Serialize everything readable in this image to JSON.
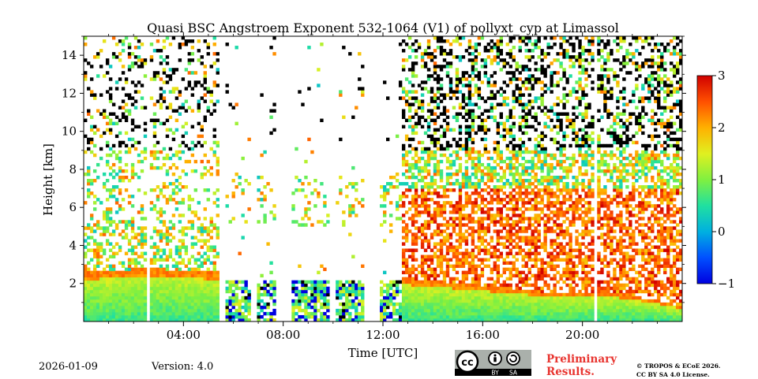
{
  "chart_data": {
    "type": "heatmap",
    "title": "Quasi BSC Angstroem Exponent 532-1064 (V1) of pollyxt_cyp at Limassol",
    "xlabel": "Time [UTC]",
    "ylabel": "Height [km]",
    "xlim_hours": [
      0,
      24
    ],
    "ylim_km": [
      0,
      15
    ],
    "x_ticks": [
      {
        "hour": 4,
        "label": "04:00"
      },
      {
        "hour": 8,
        "label": "08:00"
      },
      {
        "hour": 12,
        "label": "12:00"
      },
      {
        "hour": 16,
        "label": "16:00"
      },
      {
        "hour": 20,
        "label": "20:00"
      }
    ],
    "y_ticks": [
      {
        "value": 2,
        "label": "2"
      },
      {
        "value": 4,
        "label": "4"
      },
      {
        "value": 6,
        "label": "6"
      },
      {
        "value": 8,
        "label": "8"
      },
      {
        "value": 10,
        "label": "10"
      },
      {
        "value": 12,
        "label": "12"
      },
      {
        "value": 14,
        "label": "14"
      }
    ],
    "colorbar": {
      "min": -1,
      "max": 3,
      "colormap": "jet",
      "ticks": [
        {
          "value": 3,
          "label": "3"
        },
        {
          "value": 2,
          "label": "2"
        },
        {
          "value": 1,
          "label": "1"
        },
        {
          "value": 0,
          "label": "0"
        },
        {
          "value": -1,
          "label": "−1"
        }
      ]
    },
    "missing_data_gaps_hours": [
      [
        2.5,
        2.6
      ],
      [
        5.45,
        5.65
      ],
      [
        6.65,
        7.0
      ],
      [
        7.7,
        8.3
      ],
      [
        9.9,
        10.05
      ],
      [
        11.25,
        11.85
      ],
      [
        20.5,
        20.65
      ]
    ],
    "cloud_periods_hours": [
      [
        5.6,
        6.7
      ],
      [
        7.0,
        8.7
      ],
      [
        8.7,
        9.9
      ],
      [
        10.1,
        11.3
      ],
      [
        11.8,
        12.8
      ]
    ],
    "boundary_layer_top_km": [
      {
        "hour": 0,
        "km": 2.6
      },
      {
        "hour": 2.5,
        "km": 2.8
      },
      {
        "hour": 4,
        "km": 2.7
      },
      {
        "hour": 5.4,
        "km": 2.6
      },
      {
        "hour": 12.8,
        "km": 2.3
      },
      {
        "hour": 16,
        "km": 1.9
      },
      {
        "hour": 19,
        "km": 1.5
      },
      {
        "hour": 21,
        "km": 1.6
      },
      {
        "hour": 23,
        "km": 1.1
      },
      {
        "hour": 24,
        "km": 0.8
      }
    ]
  },
  "footer": {
    "date": "2026-01-09",
    "version": "Version: 4.0",
    "preliminary_line1": "Preliminary",
    "preliminary_line2": "Results.",
    "copyright_line1": "© TROPOS & ECoE 2026.",
    "copyright_line2": "CC BY SA 4.0 License.",
    "license_badge": {
      "cc": "cc",
      "by": "BY",
      "sa": "SA"
    }
  },
  "colors": {
    "preliminary": "#e8342f",
    "badge_bg": "#aab0ab"
  }
}
